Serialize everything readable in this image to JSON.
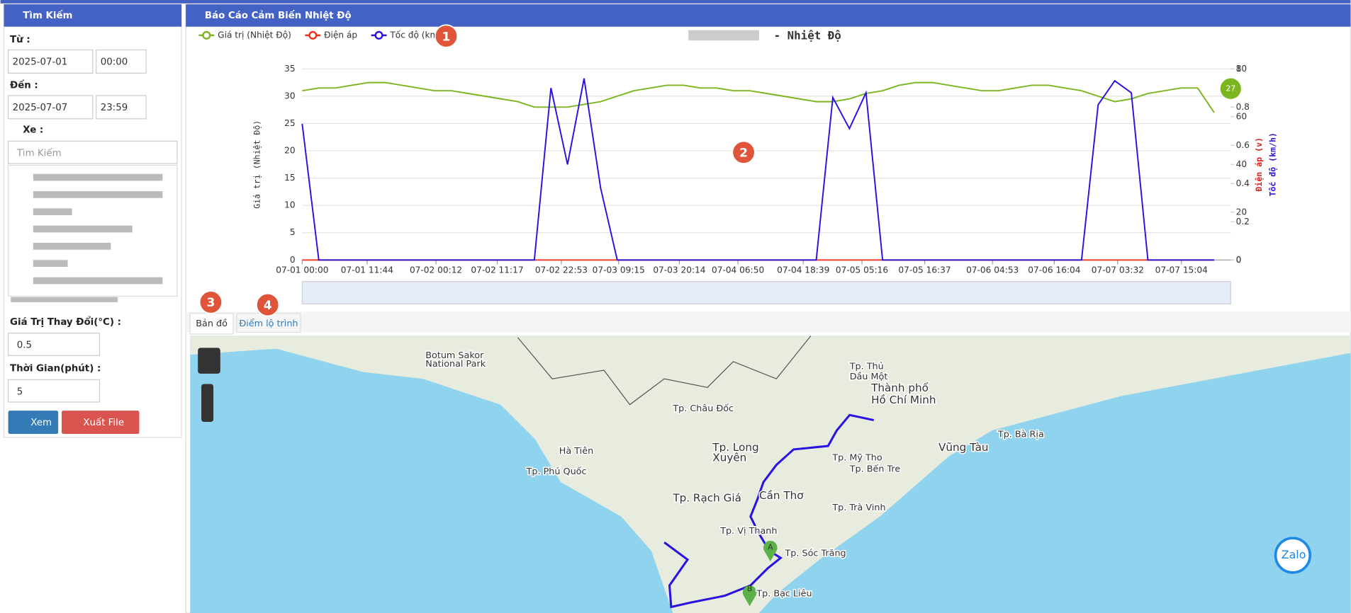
{
  "sidebar": {
    "title": "Tìm Kiếm",
    "from_label": "Từ :",
    "from_date": "2025-07-01",
    "from_time": "00:00",
    "to_label": "Đến :",
    "to_date": "2025-07-07",
    "to_time": "23:59",
    "vehicle_label": "Xe :",
    "search_placeholder": "Tìm Kiếm",
    "change_label": "Giá Trị Thay Đổi(°C) :",
    "change_value": "0.5",
    "time_label": "Thời Gian(phút) :",
    "time_value": "5",
    "view_button": "Xem",
    "export_button": "Xuất File"
  },
  "report": {
    "title": "Báo Cáo Cảm Biến Nhiệt Độ"
  },
  "callouts": [
    "1",
    "2",
    "3",
    "4"
  ],
  "tabs": [
    "Bản đồ",
    "Điểm lộ trình"
  ],
  "map": {
    "labels": [
      "Thành phố",
      "Hồ Chí Minh",
      "Tp. Thủ",
      "Dầu Một",
      "Vũng Tàu",
      "Tp. Bà Rịa",
      "Tp. Long",
      "Xuyên",
      "Cần Thơ",
      "Tp. Rạch Giá",
      "Tp. Châu Đốc",
      "Hà Tiên",
      "Tp. Phú Quốc",
      "Tp. Sóc Trăng",
      "Tp. Bạc Liêu",
      "Tp. Trà Vinh",
      "Tp. Bến Tre",
      "Botum Sakor",
      "National Park",
      "Tp. Vị Thanh",
      "Tp. Mỹ Tho"
    ],
    "marker_a": "A",
    "marker_b": "B",
    "zalo": "Zalo"
  },
  "chart_data": {
    "type": "line",
    "title": "- Nhiệt Độ",
    "y_label": "Giá trị (Nhiệt Độ)",
    "y2_label": "Điện áp (v)",
    "y3_label": "Tốc độ (km/h)",
    "x": [
      "07-01 00:00",
      "07-01 03:00",
      "07-01 06:00",
      "07-01 09:00",
      "07-01 12:00",
      "07-01 15:00",
      "07-01 18:00",
      "07-01 21:00",
      "07-02 00:00",
      "07-02 03:00",
      "07-02 06:00",
      "07-02 09:00",
      "07-02 12:00",
      "07-02 15:00",
      "07-02 18:00",
      "07-02 21:00",
      "07-03 00:00",
      "07-03 03:00",
      "07-03 06:00",
      "07-03 09:00",
      "07-03 12:00",
      "07-03 15:00",
      "07-03 18:00",
      "07-03 21:00",
      "07-04 00:00",
      "07-04 03:00",
      "07-04 06:00",
      "07-04 09:00",
      "07-04 12:00",
      "07-04 15:00",
      "07-04 18:00",
      "07-04 21:00",
      "07-05 00:00",
      "07-05 03:00",
      "07-05 06:00",
      "07-05 09:00",
      "07-05 12:00",
      "07-05 15:00",
      "07-05 18:00",
      "07-05 21:00",
      "07-06 00:00",
      "07-06 03:00",
      "07-06 06:00",
      "07-06 09:00",
      "07-06 12:00",
      "07-06 15:00",
      "07-06 18:00",
      "07-06 21:00",
      "07-07 00:00",
      "07-07 03:00",
      "07-07 06:00",
      "07-07 09:00",
      "07-07 12:00",
      "07-07 15:00",
      "07-07 18:00",
      "07-07 21:00"
    ],
    "xlim": [
      "07-01 00:00",
      "07-07 23:59"
    ],
    "xticks": [
      "07-01 00:00",
      "07-01 11:44",
      "07-02 00:12",
      "07-02 11:17",
      "07-02 22:53",
      "07-03 09:15",
      "07-03 20:14",
      "07-04 06:50",
      "07-04 18:39",
      "07-05 05:16",
      "07-05 16:37",
      "07-06 04:53",
      "07-06 16:04",
      "07-07 03:32",
      "07-07 15:04"
    ],
    "ylim": [
      0,
      35
    ],
    "yticks": [
      0,
      5,
      10,
      15,
      20,
      25,
      30,
      35
    ],
    "y2lim": [
      0,
      1
    ],
    "y2ticks": [
      0,
      0.2,
      0.4,
      0.6,
      0.8,
      1
    ],
    "y3lim": [
      0,
      80
    ],
    "y3ticks": [
      0,
      20,
      40,
      60,
      80
    ],
    "grid": true,
    "series": [
      {
        "name": "Giá trị (Nhiệt Độ)",
        "color": "#7cb520",
        "axis": "y",
        "values": [
          31,
          31.5,
          31.5,
          32,
          32.5,
          32.5,
          32,
          31.5,
          31,
          31,
          30.5,
          30,
          29.5,
          29,
          28,
          28,
          28,
          28.5,
          29,
          30,
          31,
          31.5,
          32,
          32,
          31.5,
          31.5,
          31,
          31,
          30.5,
          30,
          29.5,
          29,
          29,
          29.5,
          30.5,
          31,
          32,
          32.5,
          32.5,
          32,
          31.5,
          31,
          31,
          31.5,
          32,
          32,
          31.5,
          31,
          30,
          29,
          29.5,
          30.5,
          31,
          31.5,
          31.5,
          27
        ]
      },
      {
        "name": "Điện áp",
        "color": "#f0321e",
        "axis": "y2",
        "values": [
          0,
          0,
          0,
          0,
          0,
          0,
          0,
          0,
          0,
          0,
          0,
          0,
          0,
          0,
          0,
          0,
          0,
          0,
          0,
          0,
          0,
          0,
          0,
          0,
          0,
          0,
          0,
          0,
          0,
          0,
          0,
          0,
          0,
          0,
          0,
          0,
          0,
          0,
          0,
          0,
          0,
          0,
          0,
          0,
          0,
          0,
          0,
          0,
          0,
          0,
          0,
          0,
          0,
          0,
          0,
          0
        ]
      },
      {
        "name": "Tốc độ (km/h)",
        "color": "#2a12e0",
        "axis": "y3",
        "values": [
          57,
          0,
          0,
          0,
          0,
          0,
          0,
          0,
          0,
          0,
          0,
          0,
          0,
          0,
          0,
          72,
          40,
          76,
          30,
          0,
          0,
          0,
          0,
          0,
          0,
          0,
          0,
          0,
          0,
          0,
          0,
          0,
          68,
          55,
          70,
          0,
          0,
          0,
          0,
          0,
          0,
          0,
          0,
          0,
          0,
          0,
          0,
          0,
          65,
          75,
          70,
          0,
          0,
          0,
          0,
          0
        ]
      }
    ]
  }
}
